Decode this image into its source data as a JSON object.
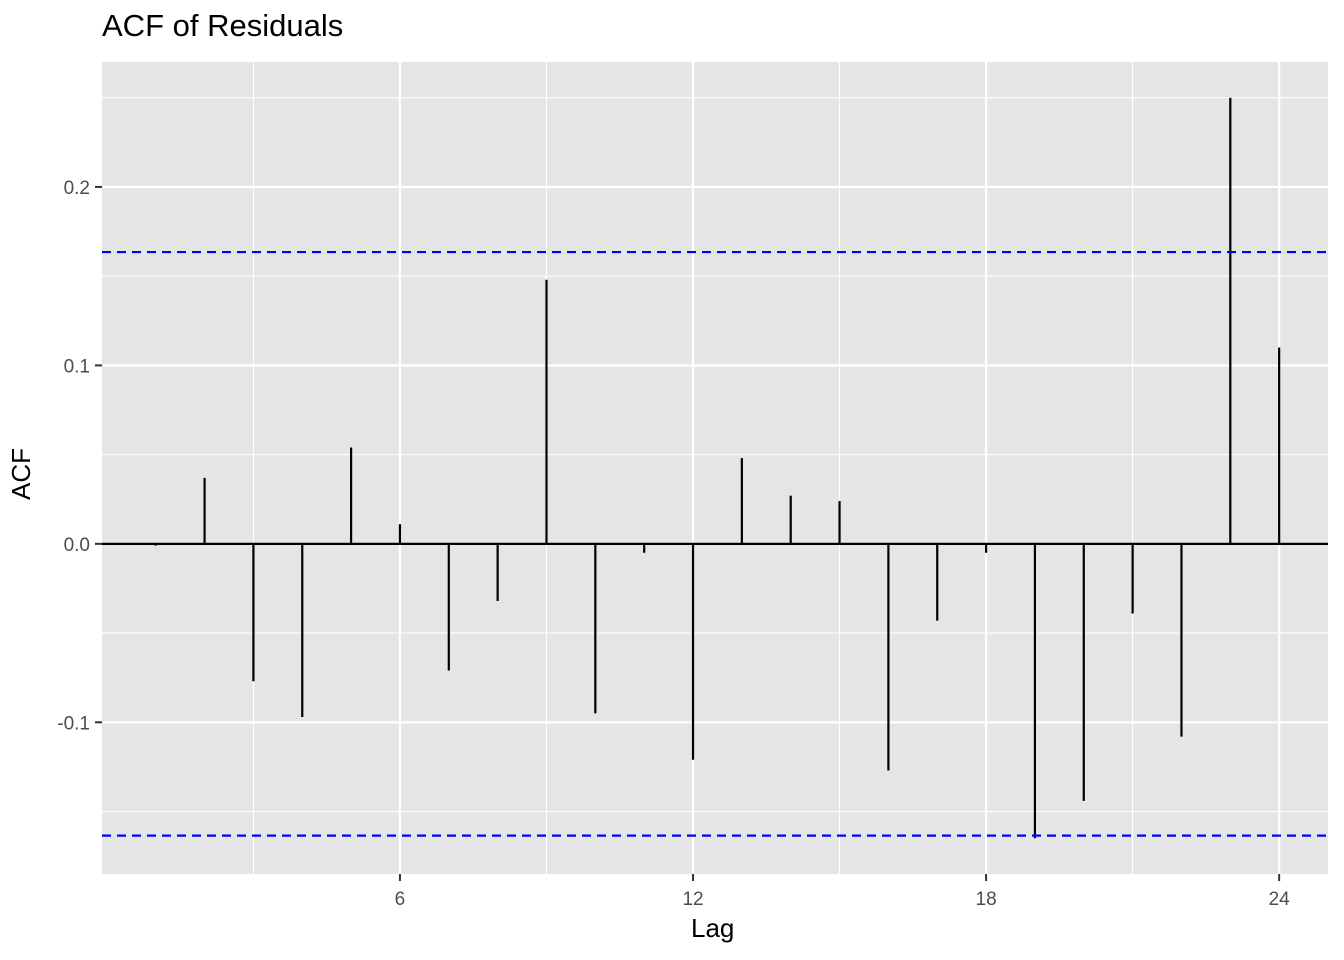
{
  "chart_data": {
    "type": "bar",
    "title": "ACF of Residuals",
    "xlabel": "Lag",
    "ylabel": "ACF",
    "x": [
      1,
      2,
      3,
      4,
      5,
      6,
      7,
      8,
      9,
      10,
      11,
      12,
      13,
      14,
      15,
      16,
      17,
      18,
      19,
      20,
      21,
      22,
      23,
      24
    ],
    "values": [
      -0.001,
      0.037,
      -0.077,
      -0.097,
      0.054,
      0.011,
      -0.071,
      -0.032,
      0.148,
      -0.095,
      -0.005,
      -0.121,
      0.048,
      0.027,
      0.024,
      -0.127,
      -0.043,
      -0.005,
      -0.165,
      -0.144,
      -0.039,
      -0.108,
      0.25,
      0.11
    ],
    "confidence_bound": 0.1635,
    "xlim": [
      -0.1,
      25.0
    ],
    "ylim": [
      -0.185,
      0.27
    ],
    "x_ticks": [
      6,
      12,
      18,
      24
    ],
    "x_tick_labels": [
      "6",
      "12",
      "18",
      "24"
    ],
    "y_ticks": [
      -0.1,
      0.0,
      0.1,
      0.2
    ],
    "y_tick_labels": [
      "-0.1",
      "0.0",
      "0.1",
      "0.2"
    ],
    "grid": true,
    "colors": {
      "panel_background": "#e5e5e5",
      "grid": "#ffffff",
      "bars": "#000000",
      "confidence_lines": "#0000ff"
    }
  }
}
